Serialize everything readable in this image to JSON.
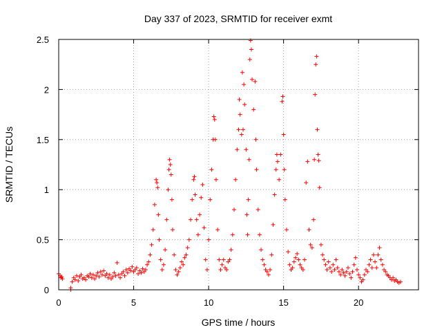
{
  "chart_data": {
    "type": "scatter",
    "title": "Day 337 of 2023, SRMTID for receiver exmt",
    "xlabel": "GPS time / hours",
    "ylabel": "SRMTID / TECUs",
    "xlim": [
      0,
      24
    ],
    "ylim": [
      0,
      2.5
    ],
    "x_ticks": [
      0,
      5,
      10,
      15,
      20
    ],
    "x_tick_labels": [
      "0",
      "5",
      "10",
      "15",
      "20"
    ],
    "y_ticks": [
      0,
      0.5,
      1,
      1.5,
      2,
      2.5
    ],
    "y_tick_labels": [
      "0",
      "0.5",
      "1",
      "1.5",
      "2",
      "2.5"
    ],
    "grid": true,
    "marker": "plus",
    "series": [
      {
        "name": "SRMTID",
        "color": "#ff0000",
        "points": [
          [
            0.0,
            0.16
          ],
          [
            0.1,
            0.14
          ],
          [
            0.15,
            0.12
          ],
          [
            0.2,
            0.13
          ],
          [
            0.25,
            0.11
          ],
          [
            0.8,
            0.0
          ],
          [
            0.8,
            0.02
          ],
          [
            0.9,
            0.08
          ],
          [
            1.0,
            0.12
          ],
          [
            1.1,
            0.1
          ],
          [
            1.2,
            0.14
          ],
          [
            1.3,
            0.09
          ],
          [
            1.4,
            0.13
          ],
          [
            1.5,
            0.15
          ],
          [
            1.6,
            0.11
          ],
          [
            1.7,
            0.12
          ],
          [
            1.8,
            0.1
          ],
          [
            1.9,
            0.14
          ],
          [
            2.0,
            0.13
          ],
          [
            2.1,
            0.16
          ],
          [
            2.2,
            0.12
          ],
          [
            2.3,
            0.15
          ],
          [
            2.4,
            0.11
          ],
          [
            2.5,
            0.14
          ],
          [
            2.6,
            0.17
          ],
          [
            2.7,
            0.13
          ],
          [
            2.8,
            0.18
          ],
          [
            2.9,
            0.15
          ],
          [
            3.0,
            0.19
          ],
          [
            3.1,
            0.14
          ],
          [
            3.2,
            0.16
          ],
          [
            3.3,
            0.12
          ],
          [
            3.4,
            0.15
          ],
          [
            3.5,
            0.11
          ],
          [
            3.6,
            0.13
          ],
          [
            3.7,
            0.17
          ],
          [
            3.8,
            0.14
          ],
          [
            3.9,
            0.27
          ],
          [
            4.0,
            0.15
          ],
          [
            4.1,
            0.12
          ],
          [
            4.2,
            0.16
          ],
          [
            4.3,
            0.18
          ],
          [
            4.4,
            0.14
          ],
          [
            4.5,
            0.2
          ],
          [
            4.6,
            0.17
          ],
          [
            4.7,
            0.21
          ],
          [
            4.8,
            0.19
          ],
          [
            4.9,
            0.23
          ],
          [
            5.0,
            0.18
          ],
          [
            5.1,
            0.2
          ],
          [
            5.2,
            0.22
          ],
          [
            5.3,
            0.16
          ],
          [
            5.4,
            0.19
          ],
          [
            5.5,
            0.17
          ],
          [
            5.6,
            0.21
          ],
          [
            5.7,
            0.18
          ],
          [
            5.8,
            0.2
          ],
          [
            5.9,
            0.25
          ],
          [
            6.0,
            0.28
          ],
          [
            6.1,
            0.35
          ],
          [
            6.2,
            0.45
          ],
          [
            6.3,
            0.6
          ],
          [
            6.4,
            0.85
          ],
          [
            6.5,
            1.1
          ],
          [
            6.55,
            1.07
          ],
          [
            6.6,
            1.02
          ],
          [
            6.65,
            0.75
          ],
          [
            6.7,
            0.5
          ],
          [
            6.8,
            0.3
          ],
          [
            6.9,
            0.2
          ],
          [
            7.0,
            0.25
          ],
          [
            7.1,
            0.4
          ],
          [
            7.2,
            0.7
          ],
          [
            7.3,
            1.0
          ],
          [
            7.35,
            1.2
          ],
          [
            7.4,
            1.3
          ],
          [
            7.45,
            1.25
          ],
          [
            7.5,
            1.15
          ],
          [
            7.55,
            0.9
          ],
          [
            7.6,
            0.6
          ],
          [
            7.7,
            0.35
          ],
          [
            7.8,
            0.2
          ],
          [
            7.9,
            0.15
          ],
          [
            8.0,
            0.18
          ],
          [
            8.1,
            0.22
          ],
          [
            8.2,
            0.28
          ],
          [
            8.3,
            0.25
          ],
          [
            8.4,
            0.32
          ],
          [
            8.5,
            0.35
          ],
          [
            8.6,
            0.42
          ],
          [
            8.7,
            0.5
          ],
          [
            8.8,
            0.7
          ],
          [
            8.9,
            0.9
          ],
          [
            9.0,
            1.1
          ],
          [
            9.05,
            1.13
          ],
          [
            9.1,
            0.95
          ],
          [
            9.2,
            0.7
          ],
          [
            9.3,
            0.55
          ],
          [
            9.4,
            0.75
          ],
          [
            9.5,
            0.92
          ],
          [
            9.6,
            1.05
          ],
          [
            9.7,
            0.62
          ],
          [
            9.8,
            0.3
          ],
          [
            9.9,
            0.2
          ],
          [
            10.0,
            0.5
          ],
          [
            10.1,
            0.9
          ],
          [
            10.2,
            1.2
          ],
          [
            10.3,
            1.5
          ],
          [
            10.35,
            1.73
          ],
          [
            10.4,
            1.7
          ],
          [
            10.45,
            1.5
          ],
          [
            10.5,
            1.1
          ],
          [
            10.6,
            0.6
          ],
          [
            10.7,
            0.3
          ],
          [
            10.8,
            0.2
          ],
          [
            10.9,
            0.25
          ],
          [
            11.0,
            0.3
          ],
          [
            11.1,
            0.22
          ],
          [
            11.2,
            0.2
          ],
          [
            11.3,
            0.28
          ],
          [
            11.4,
            0.3
          ],
          [
            11.5,
            0.4
          ],
          [
            11.6,
            0.55
          ],
          [
            11.7,
            0.8
          ],
          [
            11.8,
            1.1
          ],
          [
            11.9,
            1.4
          ],
          [
            12.0,
            1.6
          ],
          [
            12.05,
            1.9
          ],
          [
            12.1,
            1.75
          ],
          [
            12.2,
            1.55
          ],
          [
            12.25,
            2.17
          ],
          [
            12.3,
            1.6
          ],
          [
            12.35,
            2.05
          ],
          [
            12.4,
            1.85
          ],
          [
            12.5,
            1.4
          ],
          [
            12.55,
            0.75
          ],
          [
            12.6,
            0.55
          ],
          [
            12.65,
            0.9
          ],
          [
            12.7,
            1.3
          ],
          [
            12.75,
            2.3
          ],
          [
            12.8,
            2.49
          ],
          [
            12.85,
            2.4
          ],
          [
            12.9,
            2.1
          ],
          [
            13.0,
            1.8
          ],
          [
            13.1,
            2.08
          ],
          [
            13.15,
            1.5
          ],
          [
            13.2,
            1.2
          ],
          [
            13.3,
            0.8
          ],
          [
            13.4,
            0.55
          ],
          [
            13.5,
            0.4
          ],
          [
            13.6,
            0.3
          ],
          [
            13.7,
            0.25
          ],
          [
            13.8,
            0.2
          ],
          [
            13.9,
            0.18
          ],
          [
            14.0,
            0.15
          ],
          [
            14.1,
            0.2
          ],
          [
            14.2,
            0.35
          ],
          [
            14.3,
            0.65
          ],
          [
            14.4,
            0.95
          ],
          [
            14.5,
            1.2
          ],
          [
            14.55,
            1.35
          ],
          [
            14.6,
            1.28
          ],
          [
            14.7,
            1.1
          ],
          [
            14.8,
            1.35
          ],
          [
            14.9,
            1.88
          ],
          [
            14.95,
            1.93
          ],
          [
            15.0,
            1.55
          ],
          [
            15.05,
            1.2
          ],
          [
            15.1,
            0.9
          ],
          [
            15.2,
            0.6
          ],
          [
            15.3,
            0.38
          ],
          [
            15.4,
            0.25
          ],
          [
            15.5,
            0.2
          ],
          [
            15.6,
            0.22
          ],
          [
            15.7,
            0.28
          ],
          [
            15.8,
            0.32
          ],
          [
            15.9,
            0.36
          ],
          [
            16.0,
            0.3
          ],
          [
            16.1,
            0.25
          ],
          [
            16.2,
            0.22
          ],
          [
            16.3,
            0.2
          ],
          [
            16.4,
            0.3
          ],
          [
            16.5,
            1.07
          ],
          [
            16.6,
            1.28
          ],
          [
            16.7,
            0.6
          ],
          [
            16.8,
            0.45
          ],
          [
            16.9,
            0.42
          ],
          [
            17.0,
            0.7
          ],
          [
            17.05,
            1.3
          ],
          [
            17.1,
            1.95
          ],
          [
            17.15,
            2.25
          ],
          [
            17.2,
            2.33
          ],
          [
            17.25,
            1.6
          ],
          [
            17.3,
            1.35
          ],
          [
            17.35,
            1.29
          ],
          [
            17.4,
            1.02
          ],
          [
            17.5,
            0.45
          ],
          [
            17.6,
            0.35
          ],
          [
            17.7,
            0.3
          ],
          [
            17.8,
            0.25
          ],
          [
            17.9,
            0.2
          ],
          [
            18.0,
            0.28
          ],
          [
            18.1,
            0.22
          ],
          [
            18.2,
            0.18
          ],
          [
            18.3,
            0.25
          ],
          [
            18.4,
            0.2
          ],
          [
            18.5,
            0.3
          ],
          [
            18.6,
            0.22
          ],
          [
            18.7,
            0.18
          ],
          [
            18.8,
            0.15
          ],
          [
            18.9,
            0.2
          ],
          [
            19.0,
            0.17
          ],
          [
            19.1,
            0.14
          ],
          [
            19.2,
            0.18
          ],
          [
            19.3,
            0.22
          ],
          [
            19.4,
            0.16
          ],
          [
            19.5,
            0.12
          ],
          [
            19.6,
            0.18
          ],
          [
            19.7,
            0.25
          ],
          [
            19.8,
            0.32
          ],
          [
            19.9,
            0.2
          ],
          [
            20.0,
            0.15
          ],
          [
            20.1,
            0.12
          ],
          [
            20.2,
            0.08
          ],
          [
            20.3,
            0.1
          ],
          [
            20.4,
            0.15
          ],
          [
            20.5,
            0.2
          ],
          [
            20.6,
            0.18
          ],
          [
            20.7,
            0.25
          ],
          [
            20.8,
            0.3
          ],
          [
            20.9,
            0.22
          ],
          [
            21.0,
            0.35
          ],
          [
            21.1,
            0.28
          ],
          [
            21.2,
            0.22
          ],
          [
            21.3,
            0.35
          ],
          [
            21.4,
            0.42
          ],
          [
            21.5,
            0.3
          ],
          [
            21.6,
            0.25
          ],
          [
            21.7,
            0.2
          ],
          [
            21.8,
            0.18
          ],
          [
            21.9,
            0.15
          ],
          [
            22.0,
            0.14
          ],
          [
            22.1,
            0.12
          ],
          [
            22.2,
            0.1
          ],
          [
            22.3,
            0.12
          ],
          [
            22.4,
            0.09
          ],
          [
            22.5,
            0.1
          ],
          [
            22.6,
            0.08
          ],
          [
            22.7,
            0.07
          ],
          [
            22.8,
            0.08
          ]
        ]
      }
    ]
  }
}
